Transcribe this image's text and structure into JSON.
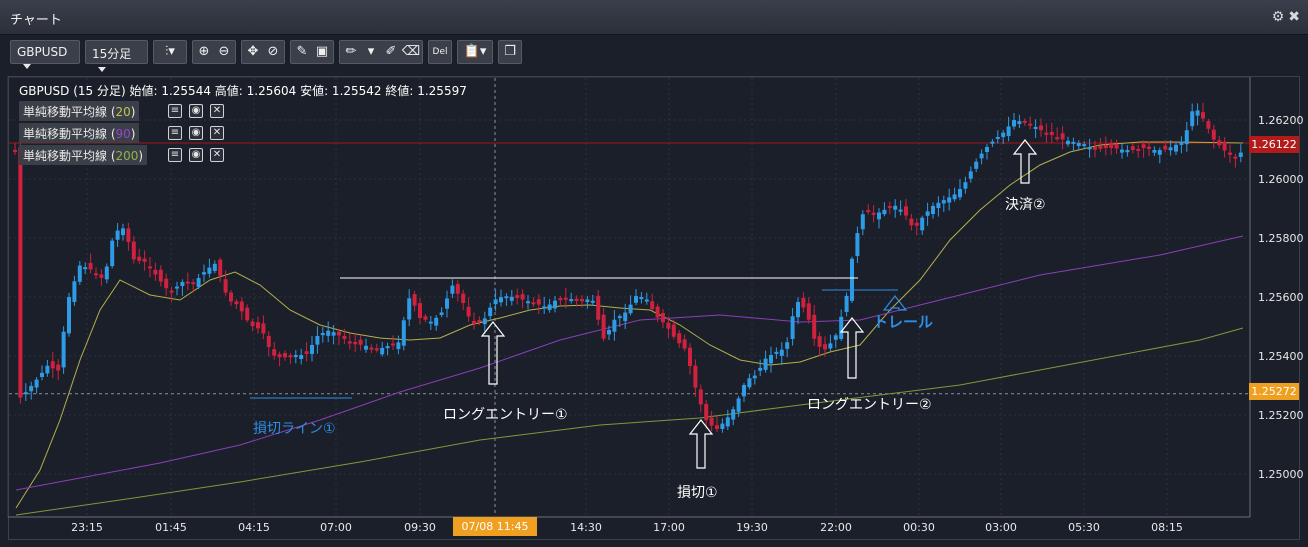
{
  "window": {
    "title": "チャート"
  },
  "toolbar": {
    "symbol": "GBPUSD",
    "timeframe": "15分足",
    "del_label": "Del"
  },
  "info": {
    "ohlc": "GBPUSD (15 分足) 始値: 1.25544 高値: 1.25604 安値: 1.25542 終値: 1.25597"
  },
  "moving_averages": [
    {
      "label": "単純移動平均線",
      "period": "20",
      "color": "#b5b04a"
    },
    {
      "label": "単純移動平均線",
      "period": "90",
      "color": "#8a3fb8"
    },
    {
      "label": "単純移動平均線",
      "period": "200",
      "color": "#7c9a3a"
    }
  ],
  "price_axis": {
    "ticks": [
      "1.26200",
      "1.26000",
      "1.25800",
      "1.25600",
      "1.25400",
      "1.25200",
      "1.25000"
    ],
    "current_price": "1.26122",
    "crosshair_price": "1.25272"
  },
  "time_axis": {
    "ticks": [
      "23:15",
      "01:45",
      "04:15",
      "07:00",
      "09:30",
      "14:30",
      "17:00",
      "19:30",
      "22:00",
      "00:30",
      "03:00",
      "05:30",
      "08:15"
    ],
    "crosshair_time": "07/08 11:45"
  },
  "annotations": {
    "stoploss_line": "損切ライン①",
    "long_entry_1": "ロングエントリー①",
    "stoploss_1": "損切①",
    "long_entry_2": "ロングエントリー②",
    "trail": "トレール",
    "settle_2": "決済②"
  },
  "colors": {
    "up_candle": "#2e9be6",
    "down_candle": "#d0213f",
    "current_price_tag": "#b31b1b",
    "crosshair_tag": "#f0a020"
  }
}
